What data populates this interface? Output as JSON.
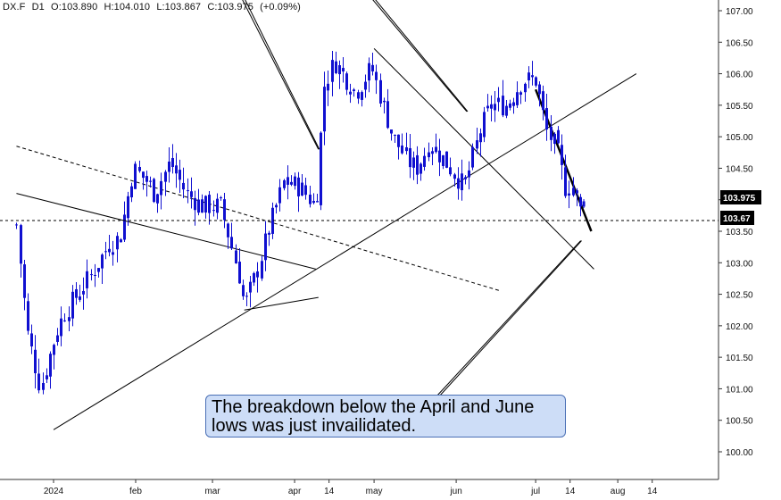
{
  "header": {
    "symbol": "DX.F",
    "timeframe": "D1",
    "open": "O:103.890",
    "high": "H:104.010",
    "low": "L:103.867",
    "close": "C:103.975",
    "change": "(+0.09%)"
  },
  "annotation": {
    "text": "The breakdown below the April and June lows was just invailidated."
  },
  "price_tags": {
    "last": "103.975",
    "level": "103.67"
  },
  "colors": {
    "candle": "#1010d0",
    "line": "#000000",
    "grid": "#d8d8d8",
    "tag_bg": "#000000",
    "callout_bg": "#cdddf7"
  },
  "chart_data": {
    "type": "candlestick",
    "title": "",
    "ylim": [
      99.6,
      107.1
    ],
    "y_ticks": [
      "107.00",
      "106.50",
      "106.00",
      "105.50",
      "105.00",
      "104.50",
      "104.00",
      "103.50",
      "103.00",
      "102.50",
      "102.00",
      "101.50",
      "101.00",
      "100.50",
      "100.00"
    ],
    "x_ticks": [
      "2024",
      "feb",
      "mar",
      "apr",
      "14",
      "may",
      "jun",
      "jul",
      "14",
      "aug",
      "14"
    ],
    "horizontal_line": 103.67,
    "close_path": [
      [
        "2023-12-18",
        103.6
      ],
      [
        "2023-12-22",
        101.9
      ],
      [
        "2023-12-27",
        101.0
      ],
      [
        "2024-01-02",
        101.9
      ],
      [
        "2024-01-05",
        102.2
      ],
      [
        "2024-01-10",
        102.5
      ],
      [
        "2024-01-15",
        102.8
      ],
      [
        "2024-01-22",
        103.3
      ],
      [
        "2024-01-26",
        103.4
      ],
      [
        "2024-01-31",
        104.5
      ],
      [
        "2024-02-05",
        104.3
      ],
      [
        "2024-02-08",
        104.1
      ],
      [
        "2024-02-14",
        104.6
      ],
      [
        "2024-02-20",
        104.1
      ],
      [
        "2024-02-26",
        103.9
      ],
      [
        "2024-03-04",
        103.9
      ],
      [
        "2024-03-11",
        102.8
      ],
      [
        "2024-03-13",
        102.3
      ],
      [
        "2024-03-18",
        102.9
      ],
      [
        "2024-03-22",
        103.5
      ],
      [
        "2024-03-28",
        104.3
      ],
      [
        "2024-04-03",
        104.2
      ],
      [
        "2024-04-09",
        103.9
      ],
      [
        "2024-04-12",
        105.8
      ],
      [
        "2024-04-16",
        106.2
      ],
      [
        "2024-04-24",
        105.7
      ],
      [
        "2024-04-30",
        106.1
      ],
      [
        "2024-05-08",
        105.0
      ],
      [
        "2024-05-14",
        104.6
      ],
      [
        "2024-05-17",
        104.5
      ],
      [
        "2024-05-22",
        104.9
      ],
      [
        "2024-05-28",
        104.6
      ],
      [
        "2024-06-04",
        104.2
      ],
      [
        "2024-06-10",
        105.1
      ],
      [
        "2024-06-14",
        105.5
      ],
      [
        "2024-06-20",
        105.5
      ],
      [
        "2024-06-26",
        105.9
      ],
      [
        "2024-07-01",
        105.9
      ],
      [
        "2024-07-05",
        105.1
      ],
      [
        "2024-07-09",
        104.8
      ],
      [
        "2024-07-12",
        104.2
      ],
      [
        "2024-07-15",
        104.2
      ],
      [
        "2024-07-18",
        103.8
      ],
      [
        "2024-07-19",
        103.975
      ]
    ],
    "trendlines": [
      {
        "style": "solid",
        "from": [
          "2023-12-18",
          104.1
        ],
        "to": [
          "2024-04-09",
          102.9
        ]
      },
      {
        "style": "dashed",
        "from": [
          "2023-12-18",
          104.85
        ],
        "to": [
          "2024-06-18",
          102.55
        ]
      },
      {
        "style": "solid",
        "from": [
          "2024-01-01",
          100.35
        ],
        "to": [
          "2024-08-08",
          106.0
        ]
      },
      {
        "style": "solid",
        "from": [
          "2024-03-13",
          102.25
        ],
        "to": [
          "2024-04-10",
          102.45
        ]
      },
      {
        "style": "solid",
        "from": [
          "2024-05-01",
          106.4
        ],
        "to": [
          "2024-07-23",
          102.9
        ]
      },
      {
        "style": "bold",
        "from": [
          "2024-07-01",
          105.75
        ],
        "to": [
          "2024-07-22",
          103.5
        ]
      },
      {
        "style": "solid",
        "from": [
          "2024-03-12",
          107.2
        ],
        "to": [
          "2024-04-10",
          104.8
        ]
      },
      {
        "style": "solid",
        "from": [
          "2024-04-30",
          107.2
        ],
        "to": [
          "2024-06-05",
          105.4
        ]
      },
      {
        "style": "solid",
        "from": [
          "2024-05-25",
          100.9
        ],
        "to": [
          "2024-07-18",
          103.35
        ]
      }
    ]
  }
}
